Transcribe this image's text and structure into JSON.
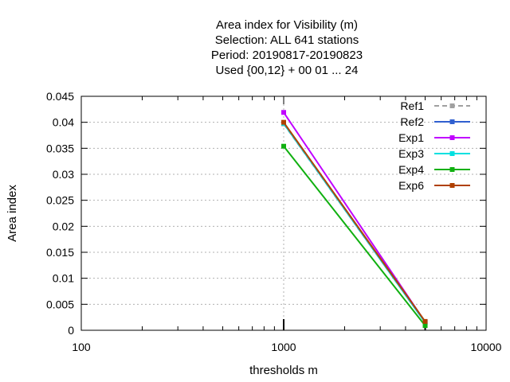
{
  "chart_data": {
    "type": "line",
    "title_lines": [
      "Area index  for Visibility (m)",
      "Selection: ALL    641 stations",
      "Period: 20190817-20190823",
      "Used {00,12} + 00 01 ... 24"
    ],
    "xlabel": "thresholds m",
    "ylabel": "Area index",
    "x_scale": "log",
    "xlim": [
      100,
      10000
    ],
    "ylim": [
      0,
      0.045
    ],
    "x_ticks": [
      100,
      1000,
      10000
    ],
    "x_tick_labels": [
      "100",
      "1000",
      "10000"
    ],
    "y_ticks": [
      0,
      0.005,
      0.01,
      0.015,
      0.02,
      0.025,
      0.03,
      0.035,
      0.04,
      0.045
    ],
    "y_tick_labels": [
      "0",
      "0.005",
      "0.01",
      "0.015",
      "0.02",
      "0.025",
      "0.03",
      "0.035",
      "0.04",
      "0.045"
    ],
    "grid": true,
    "legend_position": "top-right",
    "series": [
      {
        "name": "Ref1",
        "color": "#a0a0a0",
        "dashed": true,
        "x": [
          1000,
          5000
        ],
        "y": [
          0.0397,
          0.0015
        ]
      },
      {
        "name": "Ref2",
        "color": "#3060d0",
        "dashed": false,
        "x": [
          1000,
          5000
        ],
        "y": [
          0.0398,
          0.0015
        ]
      },
      {
        "name": "Exp1",
        "color": "#c000ff",
        "dashed": false,
        "x": [
          1000,
          5000
        ],
        "y": [
          0.0419,
          0.0016
        ]
      },
      {
        "name": "Exp3",
        "color": "#00e0e0",
        "dashed": false,
        "x": [
          1000,
          5000
        ],
        "y": [
          0.0398,
          0.0015
        ]
      },
      {
        "name": "Exp4",
        "color": "#10b010",
        "dashed": false,
        "x": [
          1000,
          5000
        ],
        "y": [
          0.0354,
          0.0009
        ]
      },
      {
        "name": "Exp6",
        "color": "#b04000",
        "dashed": false,
        "x": [
          1000,
          5000
        ],
        "y": [
          0.04,
          0.0017
        ]
      }
    ]
  }
}
